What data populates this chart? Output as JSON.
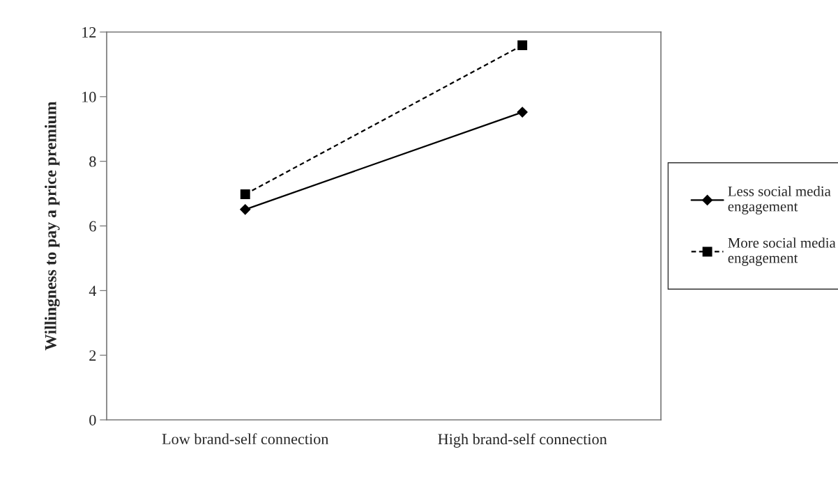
{
  "chart_data": {
    "type": "line",
    "ylabel": "Willingness to pay a price premium",
    "categories": [
      "Low brand-self connection",
      "High brand-self connection"
    ],
    "series": [
      {
        "name": "Less social media engagement",
        "color": "#000000",
        "values": [
          6.51,
          9.52
        ],
        "marker": "diamond",
        "line_style": "solid"
      },
      {
        "name": "More social media engagement",
        "color": "#000000",
        "values": [
          6.98,
          11.59
        ],
        "marker": "square",
        "line_style": "dashed"
      }
    ],
    "ylim": [
      0,
      12
    ],
    "yticks": [
      0,
      2,
      4,
      6,
      8,
      10,
      12
    ],
    "grid": false,
    "legend": "right"
  }
}
